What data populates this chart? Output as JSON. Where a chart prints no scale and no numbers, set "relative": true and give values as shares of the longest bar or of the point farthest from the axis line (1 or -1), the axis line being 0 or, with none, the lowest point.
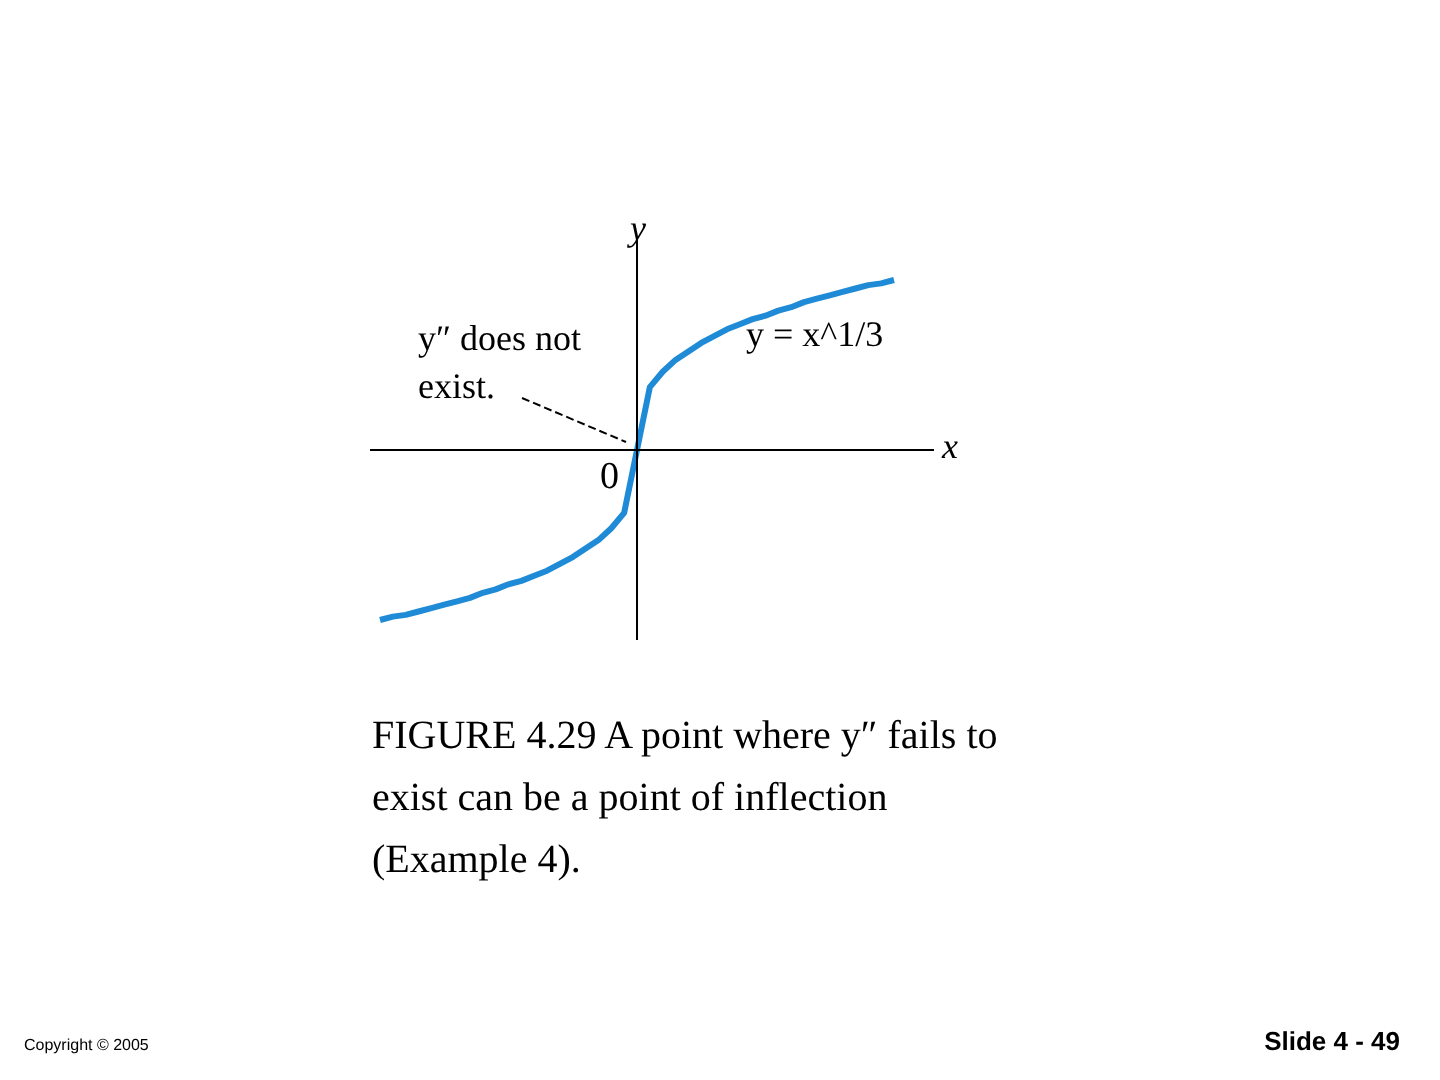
{
  "chart_data": {
    "type": "line",
    "relative": true,
    "xlabel": "x",
    "ylabel": "y",
    "categories": [
      null,
      null,
      null,
      null,
      null,
      null,
      null,
      null,
      null,
      null,
      null,
      null,
      null,
      null,
      null,
      null,
      null,
      null,
      null,
      null,
      null,
      null,
      null,
      null,
      null,
      null,
      null,
      null,
      null,
      null,
      null,
      null,
      null,
      null,
      null,
      null,
      null,
      null,
      null,
      null,
      null
    ],
    "series": [
      {
        "name": "y = x^1/3",
        "color": "#1f8ad6",
        "values": [
          -1,
          -0.98,
          -0.97,
          -0.95,
          -0.93,
          -0.91,
          -0.89,
          -0.87,
          -0.84,
          -0.82,
          -0.79,
          -0.77,
          -0.74,
          -0.71,
          -0.67,
          -0.63,
          -0.58,
          -0.53,
          -0.46,
          -0.37,
          0,
          0.37,
          0.46,
          0.53,
          0.58,
          0.63,
          0.67,
          0.71,
          0.74,
          0.77,
          0.79,
          0.82,
          0.84,
          0.87,
          0.89,
          0.91,
          0.93,
          0.95,
          0.97,
          0.98,
          1
        ]
      }
    ],
    "annotations": [
      "y″ does not exist.",
      "0",
      "FIGURE 4.29 A point where y″ fails to exist can be a point of inflection (Example 4).",
      "Copyright © 2005",
      "Slide 4 - 49"
    ],
    "grid": false,
    "line_style": "solid",
    "marker": "none"
  }
}
